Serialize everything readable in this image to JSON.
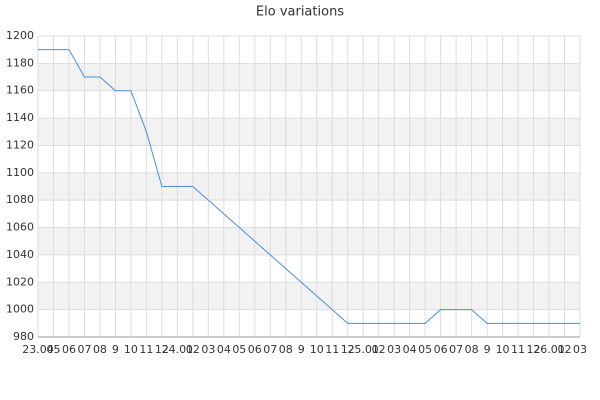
{
  "chart_data": {
    "type": "line",
    "title": "Elo variations",
    "categories": [
      "23.04",
      "05",
      "06",
      "07",
      "08",
      "9",
      "10",
      "11",
      "12",
      "24.01",
      "02",
      "03",
      "04",
      "05",
      "06",
      "07",
      "08",
      "9",
      "10",
      "11",
      "12",
      "25.01",
      "02",
      "03",
      "04",
      "05",
      "06",
      "07",
      "08",
      "9",
      "10",
      "11",
      "12",
      "26.01",
      "02",
      "03"
    ],
    "series": [
      {
        "name": "Elo",
        "color": "#4a8fd8",
        "values": [
          1190,
          1190,
          1190,
          1170,
          1170,
          1160,
          1160,
          1130,
          1090,
          1090,
          1090,
          1080,
          1070,
          1060,
          1050,
          1040,
          1030,
          1020,
          1010,
          1000,
          990,
          990,
          990,
          990,
          990,
          990,
          1000,
          1000,
          1000,
          990,
          990,
          990,
          990,
          990,
          990,
          990
        ]
      }
    ],
    "ylim": [
      980,
      1200
    ],
    "yticks": [
      980,
      1000,
      1020,
      1040,
      1060,
      1080,
      1100,
      1120,
      1140,
      1160,
      1180,
      1200
    ],
    "grid": true,
    "band_color": "#f2f2f2"
  }
}
